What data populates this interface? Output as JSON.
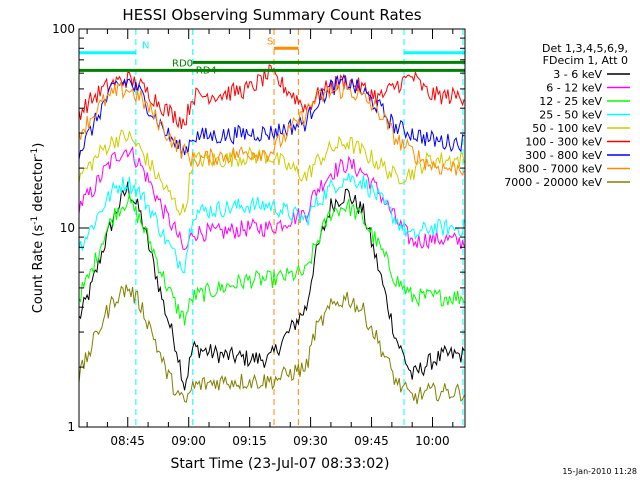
{
  "chart_data": {
    "type": "line",
    "title": "HESSI Observing Summary Count Rates",
    "xlabel": "Start Time (23-Jul-07 08:33:02)",
    "ylabel_main": "Count Rate (s",
    "ylabel_sup": "-1",
    "ylabel_mid": " detector",
    "ylabel_end": ")",
    "yscale": "log",
    "ylim": [
      1,
      100
    ],
    "xlim_minutes": [
      0,
      95
    ],
    "y_ticks": [
      "1",
      "10",
      "100"
    ],
    "x_ticks": [
      {
        "label": "08:45",
        "minutes": 11.97
      },
      {
        "label": "09:00",
        "minutes": 26.97
      },
      {
        "label": "09:15",
        "minutes": 41.97
      },
      {
        "label": "09:30",
        "minutes": 56.97
      },
      {
        "label": "09:45",
        "minutes": 71.97
      },
      {
        "label": "10:00",
        "minutes": 86.97
      }
    ],
    "timestamp": "15-Jan-2010 11:28",
    "legend_placement": "right",
    "legend_header": [
      "Det 1,3,4,5,6,9,",
      "FDecim 1, Att 0"
    ],
    "flags": [
      {
        "label": "N",
        "color": "#00ffff",
        "y": 76,
        "segments": [
          [
            0,
            14
          ],
          [
            80,
            95
          ]
        ]
      },
      {
        "label": "RD0",
        "color": "#008000",
        "y": 62,
        "segments": [
          [
            0,
            95
          ]
        ]
      },
      {
        "label": "RD4",
        "color": "#008000",
        "y": 68,
        "segments": [
          [
            28,
            95
          ]
        ]
      },
      {
        "label": "S",
        "color": "#ff8c00",
        "y": 80,
        "segments": [
          [
            48,
            54
          ]
        ]
      }
    ],
    "event_lines": [
      {
        "minutes": 0,
        "color": "#00ffff"
      },
      {
        "minutes": 14,
        "color": "#00ffff"
      },
      {
        "minutes": 28,
        "color": "#00ffff"
      },
      {
        "minutes": 48,
        "color": "#ff8c00"
      },
      {
        "minutes": 54,
        "color": "#ff8c00"
      },
      {
        "minutes": 80,
        "color": "#00ffff"
      },
      {
        "minutes": 94.5,
        "color": "#00ffff"
      }
    ],
    "series": [
      {
        "name": "3 - 6 keV",
        "color": "#000000",
        "x": [
          0,
          3,
          6,
          9,
          12,
          15,
          18,
          21,
          24,
          26,
          28,
          35,
          42,
          47,
          56,
          58,
          62,
          66,
          70,
          74,
          78,
          82,
          86,
          90,
          94
        ],
        "y": [
          3.5,
          5,
          8,
          12,
          16,
          12,
          7,
          4,
          2.5,
          1.6,
          2.5,
          2.3,
          2.2,
          2.2,
          4,
          7,
          13,
          15,
          12,
          6,
          2.8,
          1.8,
          2.1,
          2.3,
          2.3
        ]
      },
      {
        "name": "6 - 12 keV",
        "color": "#ff00ff",
        "x": [
          0,
          3,
          6,
          9,
          12,
          15,
          18,
          21,
          24,
          26,
          28,
          35,
          42,
          47,
          56,
          58,
          62,
          66,
          70,
          74,
          78,
          82,
          86,
          90,
          94
        ],
        "y": [
          13,
          15,
          19,
          23,
          25,
          21,
          16,
          12,
          9.5,
          7.5,
          9.5,
          9.5,
          10,
          10,
          12,
          15,
          19,
          21,
          19,
          15,
          11,
          8.5,
          8.8,
          8.8,
          8.5
        ]
      },
      {
        "name": "12 - 25 keV",
        "color": "#00ff00",
        "x": [
          0,
          3,
          6,
          9,
          12,
          15,
          18,
          21,
          24,
          26,
          28,
          35,
          42,
          47,
          56,
          58,
          62,
          66,
          70,
          74,
          78,
          82,
          86,
          90,
          94
        ],
        "y": [
          4.5,
          6,
          9,
          12,
          14,
          11,
          8,
          5.5,
          4,
          3.5,
          4.5,
          5,
          5.5,
          5.5,
          6,
          8,
          12,
          13,
          11,
          8,
          5.5,
          4.5,
          4.5,
          4.5,
          4.5
        ]
      },
      {
        "name": "25 - 50 keV",
        "color": "#00ffff",
        "x": [
          0,
          3,
          6,
          9,
          12,
          15,
          18,
          21,
          24,
          26,
          28,
          35,
          42,
          47,
          56,
          58,
          62,
          66,
          70,
          74,
          78,
          82,
          86,
          90,
          94
        ],
        "y": [
          8,
          10,
          13,
          16,
          17,
          15,
          12,
          9,
          7,
          6.5,
          12,
          12.5,
          13,
          13,
          11,
          13,
          16,
          18,
          17,
          14,
          11,
          9,
          10,
          10,
          10
        ]
      },
      {
        "name": "50 - 100 keV",
        "color": "#cccc00",
        "x": [
          0,
          3,
          6,
          9,
          12,
          15,
          18,
          21,
          24,
          26,
          28,
          35,
          42,
          47,
          56,
          58,
          62,
          66,
          70,
          74,
          78,
          82,
          86,
          90,
          94
        ],
        "y": [
          18,
          21,
          25,
          28,
          29,
          25,
          20,
          16,
          13,
          12,
          22,
          22,
          23,
          23,
          18,
          21,
          25,
          27,
          24,
          21,
          18,
          19,
          22,
          22,
          22
        ]
      },
      {
        "name": "100 - 300 keV",
        "color": "#ff0000",
        "x": [
          0,
          3,
          6,
          9,
          12,
          15,
          18,
          21,
          24,
          26,
          28,
          35,
          42,
          47,
          56,
          58,
          62,
          66,
          70,
          74,
          78,
          82,
          86,
          90,
          94
        ],
        "y": [
          38,
          44,
          50,
          54,
          56,
          52,
          46,
          40,
          36,
          34,
          46,
          47,
          50,
          60,
          40,
          45,
          52,
          55,
          50,
          45,
          52,
          58,
          47,
          46,
          46
        ]
      },
      {
        "name": "300 - 800 keV",
        "color": "#0000ff",
        "x": [
          0,
          3,
          6,
          9,
          12,
          15,
          18,
          21,
          24,
          26,
          28,
          35,
          42,
          47,
          56,
          58,
          62,
          66,
          70,
          74,
          78,
          82,
          86,
          90,
          94
        ],
        "y": [
          24,
          31,
          42,
          52,
          55,
          48,
          38,
          31,
          26,
          24,
          29,
          29,
          30,
          30,
          34,
          42,
          51,
          54,
          48,
          40,
          32,
          30,
          28,
          27,
          27
        ]
      },
      {
        "name": "800 - 7000 keV",
        "color": "#ff8c00",
        "x": [
          0,
          3,
          6,
          9,
          12,
          15,
          18,
          21,
          24,
          26,
          28,
          35,
          42,
          47,
          56,
          58,
          62,
          66,
          70,
          74,
          78,
          82,
          86,
          90,
          94
        ],
        "y": [
          30,
          36,
          43,
          48,
          50,
          45,
          38,
          31,
          26,
          24,
          22,
          23,
          24,
          24,
          38,
          44,
          48,
          50,
          45,
          38,
          28,
          24,
          21,
          20,
          20
        ]
      },
      {
        "name": "7000 - 20000 keV",
        "color": "#808000",
        "x": [
          0,
          3,
          6,
          9,
          12,
          15,
          18,
          21,
          24,
          26,
          28,
          35,
          42,
          47,
          56,
          58,
          62,
          66,
          70,
          74,
          78,
          82,
          86,
          90,
          94
        ],
        "y": [
          1.8,
          2.5,
          3.5,
          4.5,
          5,
          4.2,
          3,
          2,
          1.5,
          1.3,
          1.6,
          1.7,
          1.7,
          1.7,
          2,
          3,
          4,
          4.5,
          3.8,
          2.6,
          1.7,
          1.4,
          1.5,
          1.5,
          1.5
        ]
      }
    ]
  }
}
